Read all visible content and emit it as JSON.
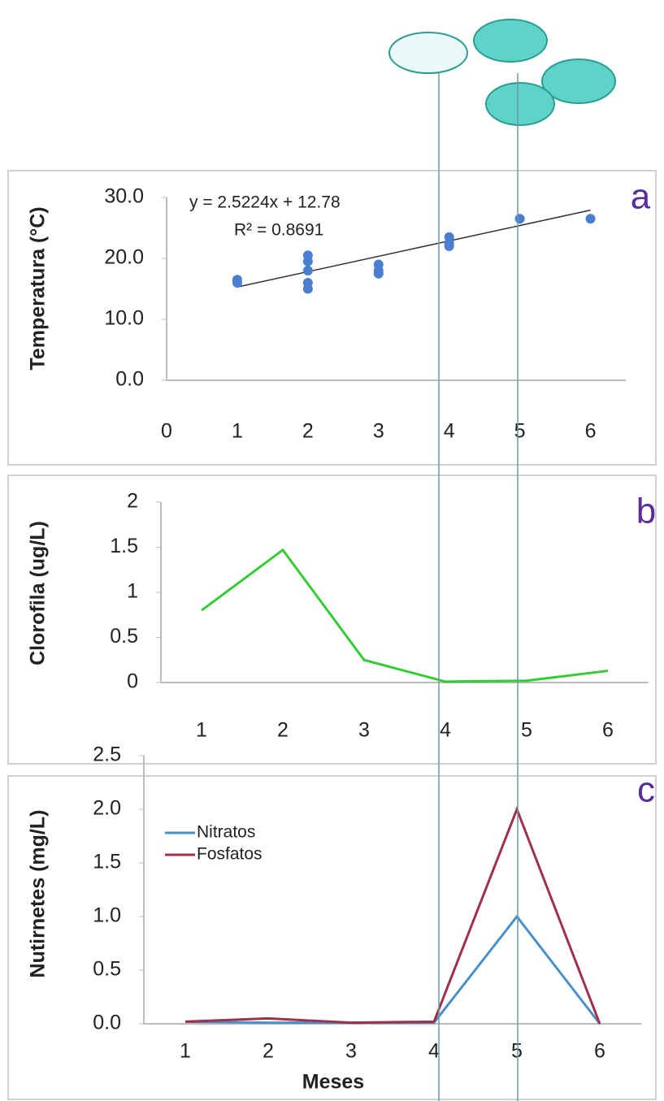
{
  "chart_data": [
    {
      "type": "scatter",
      "panel_label": "a",
      "y_label": "Temperatura (°C)",
      "x": [
        1,
        1,
        2,
        2,
        2,
        2,
        2,
        3,
        3,
        3,
        4,
        4,
        4,
        5,
        6
      ],
      "values": [
        16.5,
        16,
        20.5,
        19.5,
        18,
        16,
        15,
        19,
        18,
        17.5,
        23.5,
        22.5,
        22,
        26.5,
        26.5
      ],
      "color": "#4a7fd0",
      "trendline": {
        "equation": "y = 2.5224x + 12.78",
        "r_squared": "R² = 0.8691",
        "slope": 2.5224,
        "intercept": 12.78,
        "color": "#333333"
      },
      "xlim": [
        0,
        6.5
      ],
      "xticks": [
        0,
        1,
        2,
        3,
        4,
        5,
        6
      ],
      "ylim": [
        0,
        30
      ],
      "yticks": [
        {
          "value": 0,
          "label": "0.0"
        },
        {
          "value": 10,
          "label": "10.0"
        },
        {
          "value": 20,
          "label": "20.0"
        },
        {
          "value": 30,
          "label": "30.0"
        }
      ]
    },
    {
      "type": "line",
      "panel_label": "b",
      "y_label": "Clorofila (ug/L)",
      "categories": [
        "1",
        "2",
        "3",
        "4",
        "5",
        "6"
      ],
      "series": [
        {
          "name": null,
          "color": "#33cc33",
          "values": [
            0.8,
            1.47,
            0.25,
            0.01,
            0.02,
            0.13
          ]
        }
      ],
      "ylim": [
        0,
        2
      ],
      "yticks": [
        0,
        0.5,
        1,
        1.5,
        2
      ]
    },
    {
      "type": "line",
      "panel_label": "c",
      "y_label": "Nutirnetes (mg/L)",
      "x_label": "Meses",
      "categories": [
        "1",
        "2",
        "3",
        "4",
        "5",
        "6"
      ],
      "series": [
        {
          "name": "Nitratos",
          "color": "#4a90c8",
          "values": [
            0.02,
            0.01,
            0.01,
            0.01,
            1.0,
            0.0
          ]
        },
        {
          "name": "Fosfatos",
          "color": "#a0304a",
          "values": [
            0.02,
            0.05,
            0.01,
            0.02,
            2.0,
            0.0
          ]
        }
      ],
      "legend": "upper left",
      "ylim": [
        0,
        2.5
      ],
      "yticks": [
        {
          "value": 0,
          "label": "0.0"
        },
        {
          "value": 0.5,
          "label": "0.5"
        },
        {
          "value": 1,
          "label": "1.0"
        },
        {
          "value": 1.5,
          "label": "1.5"
        },
        {
          "value": 2,
          "label": "2.0"
        },
        {
          "value": 2.5,
          "label": "2.5"
        }
      ]
    }
  ]
}
